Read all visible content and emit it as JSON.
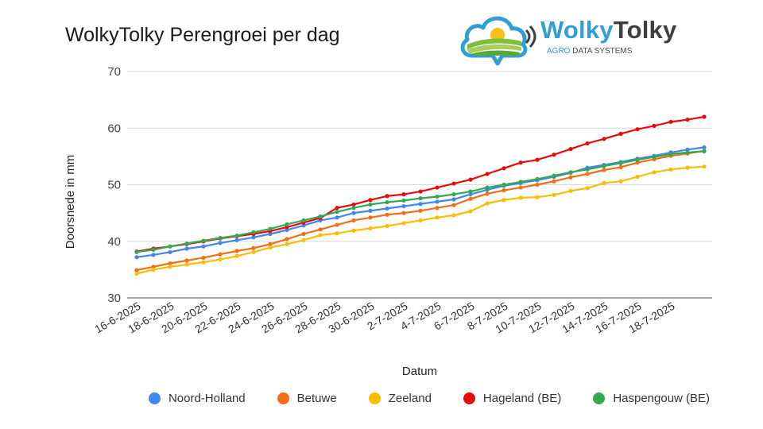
{
  "logo": {
    "name_part1": "Wolky",
    "name_part2": "Tolky",
    "tagline_part1": "AGRO",
    "tagline_part2": "DATA SYSTEMS"
  },
  "chart_data": {
    "type": "line",
    "title": "WolkyTolky Perengroei per dag",
    "xlabel": "Datum",
    "ylabel": "Doorsnede in mm",
    "ylim": [
      30,
      70
    ],
    "yticks": [
      30,
      40,
      50,
      60,
      70
    ],
    "grid": true,
    "legend_position": "bottom",
    "x_tick_labels": [
      "16-6-2025",
      "18-6-2025",
      "20-6-2025",
      "22-6-2025",
      "24-6-2025",
      "26-6-2025",
      "28-6-2025",
      "30-6-2025",
      "2-7-2025",
      "4-7-2025",
      "6-7-2025",
      "8-7-2025",
      "10-7-2025",
      "12-7-2025",
      "14-7-2025",
      "16-7-2025",
      "18-7-2025"
    ],
    "x": [
      "16-6-2025",
      "17-6-2025",
      "18-6-2025",
      "19-6-2025",
      "20-6-2025",
      "21-6-2025",
      "22-6-2025",
      "23-6-2025",
      "24-6-2025",
      "25-6-2025",
      "26-6-2025",
      "27-6-2025",
      "28-6-2025",
      "29-6-2025",
      "30-6-2025",
      "1-7-2025",
      "2-7-2025",
      "3-7-2025",
      "4-7-2025",
      "5-7-2025",
      "6-7-2025",
      "7-7-2025",
      "8-7-2025",
      "9-7-2025",
      "10-7-2025",
      "11-7-2025",
      "12-7-2025",
      "13-7-2025",
      "14-7-2025",
      "15-7-2025",
      "16-7-2025",
      "17-7-2025",
      "18-7-2025",
      "19-7-2025",
      "20-7-2025"
    ],
    "series": [
      {
        "name": "Noord-Holland",
        "color": "#4285f4",
        "values": [
          37.2,
          37.6,
          38.1,
          38.7,
          39.1,
          39.7,
          40.2,
          40.7,
          41.3,
          42.0,
          42.8,
          43.7,
          44.2,
          45.0,
          45.4,
          45.8,
          46.2,
          46.6,
          47.0,
          47.4,
          48.3,
          49.1,
          49.8,
          50.3,
          50.8,
          51.4,
          52.1,
          53.0,
          53.5,
          54.0,
          54.6,
          55.1,
          55.7,
          56.2,
          56.6
        ]
      },
      {
        "name": "Betuwe",
        "color": "#f46d12",
        "values": [
          34.9,
          35.5,
          36.1,
          36.6,
          37.1,
          37.7,
          38.3,
          38.8,
          39.5,
          40.4,
          41.3,
          42.1,
          42.9,
          43.7,
          44.2,
          44.7,
          45.0,
          45.4,
          45.9,
          46.4,
          47.5,
          48.4,
          49.0,
          49.5,
          50.0,
          50.6,
          51.3,
          51.9,
          52.6,
          53.1,
          53.9,
          54.5,
          55.1,
          55.5,
          56.0
        ]
      },
      {
        "name": "Zeeland",
        "color": "#fbbc04",
        "values": [
          34.3,
          35.0,
          35.5,
          35.9,
          36.3,
          36.8,
          37.4,
          38.1,
          38.9,
          39.5,
          40.2,
          41.1,
          41.4,
          41.9,
          42.3,
          42.7,
          43.2,
          43.7,
          44.2,
          44.6,
          45.3,
          46.7,
          47.3,
          47.7,
          47.8,
          48.2,
          48.9,
          49.4,
          50.3,
          50.6,
          51.4,
          52.2,
          52.7,
          53.0,
          53.2
        ]
      },
      {
        "name": "Hageland (BE)",
        "color": "#ea0a0a",
        "values": [
          38.2,
          38.7,
          39.1,
          39.5,
          40.0,
          40.5,
          40.9,
          41.3,
          41.8,
          42.5,
          43.3,
          44.1,
          45.9,
          46.5,
          47.3,
          48.0,
          48.3,
          48.8,
          49.5,
          50.2,
          50.9,
          51.9,
          52.9,
          53.9,
          54.4,
          55.3,
          56.3,
          57.3,
          58.1,
          59.0,
          59.8,
          60.4,
          61.1,
          61.5,
          62.0
        ]
      },
      {
        "name": "Haspengouw (BE)",
        "color": "#34a853",
        "values": [
          38.1,
          38.5,
          39.1,
          39.6,
          40.1,
          40.6,
          41.0,
          41.6,
          42.2,
          43.0,
          43.7,
          44.4,
          45.2,
          45.9,
          46.5,
          46.9,
          47.2,
          47.6,
          47.9,
          48.3,
          48.8,
          49.5,
          50.0,
          50.5,
          51.0,
          51.6,
          52.2,
          52.7,
          53.3,
          53.8,
          54.4,
          54.9,
          55.4,
          55.7,
          55.9
        ]
      }
    ]
  }
}
